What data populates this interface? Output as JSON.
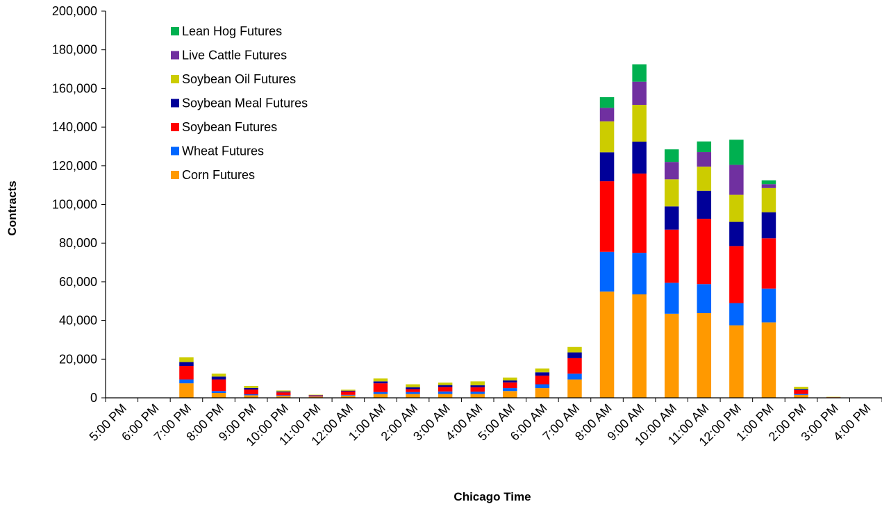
{
  "chart_data": {
    "type": "bar",
    "stacked": true,
    "xlabel": "Chicago Time",
    "ylabel": "Contracts",
    "ylim": [
      0,
      200000
    ],
    "yticks": [
      0,
      20000,
      40000,
      60000,
      80000,
      100000,
      120000,
      140000,
      160000,
      180000,
      200000
    ],
    "ytick_labels": [
      "0",
      "20,000",
      "40,000",
      "60,000",
      "80,000",
      "100,000",
      "120,000",
      "140,000",
      "160,000",
      "180,000",
      "200,000"
    ],
    "grid": false,
    "legend_position": "top-left",
    "categories": [
      "5:00 PM",
      "6:00 PM",
      "7:00 PM",
      "8:00 PM",
      "9:00 PM",
      "10:00 PM",
      "11:00 PM",
      "12:00 AM",
      "1:00 AM",
      "2:00 AM",
      "3:00 AM",
      "4:00 AM",
      "5:00 AM",
      "6:00 AM",
      "7:00 AM",
      "8:00 AM",
      "9:00 AM",
      "10:00 AM",
      "11:00 AM",
      "12:00 PM",
      "1:00 PM",
      "2:00 PM",
      "3:00 PM",
      "4:00 PM"
    ],
    "series": [
      {
        "name": "Corn Futures",
        "color": "#FF9900",
        "values": [
          0,
          0,
          7500,
          2500,
          1300,
          1000,
          600,
          1200,
          2000,
          2000,
          2000,
          2000,
          3500,
          5000,
          9500,
          55000,
          53500,
          43500,
          43800,
          37500,
          39000,
          1500,
          200,
          0
        ]
      },
      {
        "name": "Wheat Futures",
        "color": "#0066FF",
        "values": [
          0,
          0,
          2000,
          1000,
          500,
          300,
          200,
          300,
          1000,
          1000,
          1300,
          1200,
          1500,
          2000,
          3000,
          20500,
          21500,
          16000,
          15000,
          11500,
          17500,
          500,
          0,
          0
        ]
      },
      {
        "name": "Soybean Futures",
        "color": "#FF0000",
        "values": [
          0,
          0,
          7000,
          6000,
          2500,
          1500,
          400,
          1800,
          4500,
          1500,
          2300,
          2300,
          3000,
          4500,
          8000,
          36500,
          41000,
          27500,
          33800,
          29500,
          26000,
          2000,
          100,
          0
        ]
      },
      {
        "name": "Soybean Meal Futures",
        "color": "#000099",
        "values": [
          0,
          0,
          2000,
          1500,
          800,
          500,
          200,
          400,
          1000,
          1000,
          1000,
          1000,
          1000,
          1700,
          3000,
          15000,
          16500,
          12000,
          14500,
          12500,
          13500,
          500,
          0,
          0
        ]
      },
      {
        "name": "Soybean Oil Futures",
        "color": "#CCCC00",
        "values": [
          0,
          0,
          2500,
          1500,
          1000,
          500,
          200,
          500,
          1500,
          1500,
          1300,
          2000,
          1500,
          2000,
          2800,
          16000,
          19000,
          14000,
          12500,
          14000,
          12500,
          1200,
          200,
          0
        ]
      },
      {
        "name": "Live Cattle Futures",
        "color": "#7030A0",
        "values": [
          0,
          0,
          0,
          0,
          0,
          0,
          0,
          0,
          0,
          0,
          0,
          0,
          0,
          0,
          0,
          7000,
          12000,
          9000,
          7500,
          15500,
          2000,
          0,
          0,
          0
        ]
      },
      {
        "name": "Lean Hog Futures",
        "color": "#00B050",
        "values": [
          0,
          0,
          0,
          0,
          0,
          0,
          0,
          0,
          0,
          0,
          0,
          0,
          0,
          0,
          0,
          5500,
          9000,
          6500,
          5500,
          13000,
          2000,
          0,
          0,
          0
        ]
      }
    ]
  }
}
